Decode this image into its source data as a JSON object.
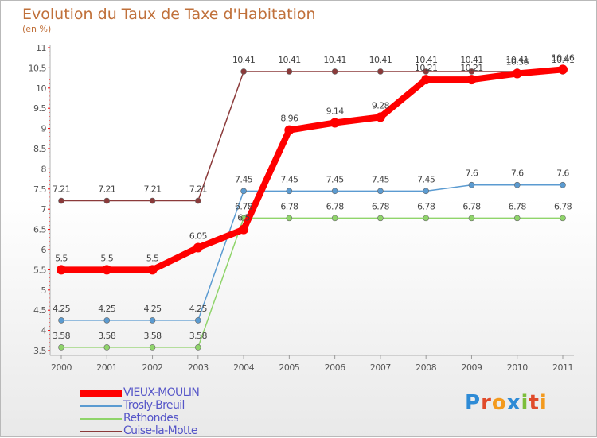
{
  "header": {
    "title": "Evolution du Taux de Taxe d'Habitation",
    "subtitle": "(en %)"
  },
  "logo": {
    "text": "Proxiti",
    "colors": [
      "#2e8bd6",
      "#e04a2a",
      "#f39a1e",
      "#2e8bd6",
      "#7cbe3a",
      "#e04a2a",
      "#f39a1e"
    ]
  },
  "chart_data": {
    "type": "line",
    "x": [
      "2000",
      "2001",
      "2002",
      "2003",
      "2004",
      "2005",
      "2006",
      "2007",
      "2008",
      "2009",
      "2010",
      "2011"
    ],
    "ylim": [
      3.5,
      11
    ],
    "yticks": [
      "3.5",
      "4",
      "4.5",
      "5",
      "5.5",
      "6",
      "6.5",
      "7",
      "7.5",
      "8",
      "8.5",
      "9",
      "9.5",
      "10",
      "10.5",
      "11"
    ],
    "grid": false,
    "legend_position": "bottom-left",
    "series": [
      {
        "name": "VIEUX-MOULIN",
        "color": "#ff0000",
        "bold": true,
        "values": [
          5.5,
          5.5,
          5.5,
          6.05,
          6.5,
          8.96,
          9.14,
          9.28,
          10.21,
          10.21,
          10.36,
          10.46
        ],
        "labels": [
          "5.5",
          "5.5",
          "5.5",
          "6.05",
          "6.5",
          "8.96",
          "9.14",
          "9.28",
          "10.21",
          "10.21",
          "10.36",
          "10.46"
        ]
      },
      {
        "name": "Trosly-Breuil",
        "color": "#5b9bd1",
        "bold": false,
        "values": [
          4.25,
          4.25,
          4.25,
          4.25,
          7.45,
          7.45,
          7.45,
          7.45,
          7.45,
          7.6,
          7.6,
          7.6
        ],
        "labels": [
          "4.25",
          "4.25",
          "4.25",
          "4.25",
          "7.45",
          "7.45",
          "7.45",
          "7.45",
          "7.45",
          "7.6",
          "7.6",
          "7.6"
        ]
      },
      {
        "name": "Rethondes",
        "color": "#8fd46a",
        "bold": false,
        "values": [
          3.58,
          3.58,
          3.58,
          3.58,
          6.78,
          6.78,
          6.78,
          6.78,
          6.78,
          6.78,
          6.78,
          6.78
        ],
        "labels": [
          "3.58",
          "3.58",
          "3.58",
          "3.58",
          "6.78",
          "6.78",
          "6.78",
          "6.78",
          "6.78",
          "6.78",
          "6.78",
          "6.78"
        ]
      },
      {
        "name": "Cuise-la-Motte",
        "color": "#8b3a3a",
        "bold": false,
        "values": [
          7.21,
          7.21,
          7.21,
          7.21,
          10.41,
          10.41,
          10.41,
          10.41,
          10.41,
          10.41,
          10.41,
          10.41
        ],
        "labels": [
          "7.21",
          "7.21",
          "7.21",
          "7.21",
          "10.41",
          "10.41",
          "10.41",
          "10.41",
          "10.41",
          "10.41",
          "10.41",
          "10.41"
        ]
      }
    ]
  }
}
